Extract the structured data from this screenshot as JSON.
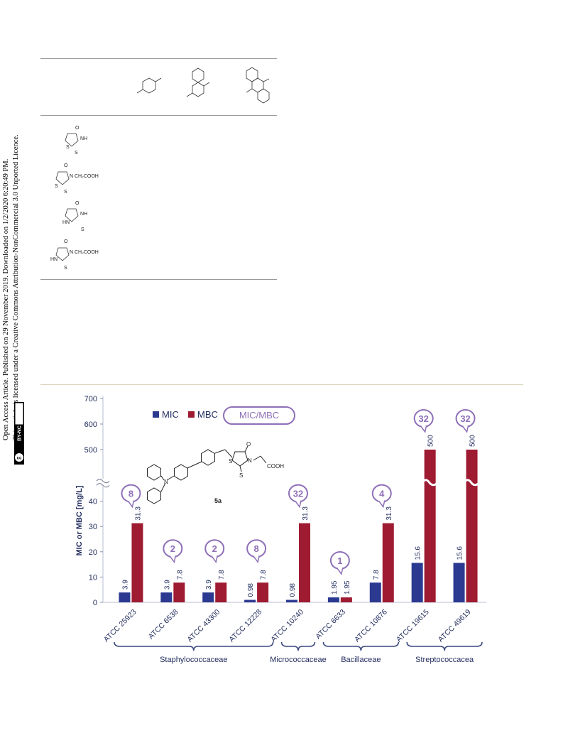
{
  "sidebar": {
    "line1": "Open Access Article. Published on 29 November 2019. Downloaded on 1/2/2020 6:20:49 PM.",
    "line2": "This article is licensed under a Creative Commons Attribution-NonCommercial 3.0 Unported Licence.",
    "badge_cc": "cc",
    "badge_text": "BY-NC"
  },
  "structures": {
    "row_labels": [
      "O",
      "NH",
      "S",
      "S",
      "O",
      "N",
      "CH₂COOH",
      "S",
      "S",
      "O",
      "NH",
      "HN",
      "S",
      "O",
      "N",
      "CH₂COOH",
      "HN",
      "S"
    ]
  },
  "chart_data": {
    "type": "bar",
    "ylabel": "MIC or MBC [mg/L]",
    "y_ticks_lower": [
      0,
      10,
      20,
      30,
      40
    ],
    "y_ticks_upper": [
      500,
      600,
      700
    ],
    "axis_break": true,
    "legend": [
      "MIC",
      "MBC",
      "MIC/MBC"
    ],
    "legend_placement": "top-center",
    "colors": {
      "MIC": "#2b3990",
      "MBC": "#9e1b32",
      "ratio": "#8e6fb8"
    },
    "compound_label": "5a",
    "compound_text": [
      "O",
      "S",
      "N",
      "S",
      "COOH",
      "N"
    ],
    "categories": [
      "ATCC 25923",
      "ATCC 6538",
      "ATCC 43300",
      "ATCC 12228",
      "ATCC 10240",
      "ATCC 6633",
      "ATCC 10876",
      "ATCC 19615",
      "ATCC 49619"
    ],
    "series": [
      {
        "name": "MIC",
        "values": [
          3.9,
          3.9,
          3.9,
          0.98,
          0.98,
          1.95,
          7.8,
          15.6,
          15.6
        ]
      },
      {
        "name": "MBC",
        "values": [
          31.3,
          7.8,
          7.8,
          7.8,
          31.3,
          1.95,
          31.3,
          500,
          500
        ]
      }
    ],
    "value_labels": {
      "MIC": [
        "3.9",
        "3.9",
        "3.9",
        "0.98",
        "0.98",
        "1.95",
        "7.8",
        "15.6",
        "15.6"
      ],
      "MBC": [
        "31.3",
        "7.8",
        "7.8",
        "7.8",
        "31.3",
        "1.95",
        "31.3",
        "500",
        "500"
      ]
    },
    "ratios": [
      "8",
      "2",
      "2",
      "8",
      "32",
      "1",
      "4",
      "32",
      "32"
    ],
    "groups": [
      {
        "name": "Staphylococcaceae",
        "count": 4
      },
      {
        "name": "Micrococcaceae",
        "count": 1
      },
      {
        "name": "Bacillaceae",
        "count": 2
      },
      {
        "name": "Streptococcacea",
        "count": 2
      }
    ]
  }
}
